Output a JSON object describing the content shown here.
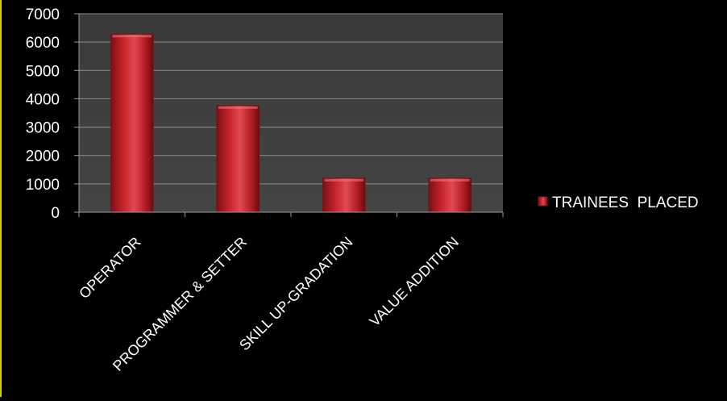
{
  "chart_data": {
    "type": "bar",
    "title": "",
    "xlabel": "",
    "ylabel": "",
    "categories": [
      "OPERATOR",
      "PROGRAMMER & SETTER",
      "SKILL UP-GRADATION",
      "VALUE ADDITION"
    ],
    "series": [
      {
        "name": "TRAINEES  PLACED",
        "values": [
          6280,
          3760,
          1200,
          1200
        ],
        "color": "#c8242b"
      }
    ],
    "ylim": [
      0,
      7000
    ],
    "yticks": [
      0,
      1000,
      2000,
      3000,
      4000,
      5000,
      6000,
      7000
    ],
    "grid": true,
    "legend_position": "right",
    "plot_background": "#3c3c3c",
    "page_background": "#000000",
    "text_color": "#ffffff"
  }
}
